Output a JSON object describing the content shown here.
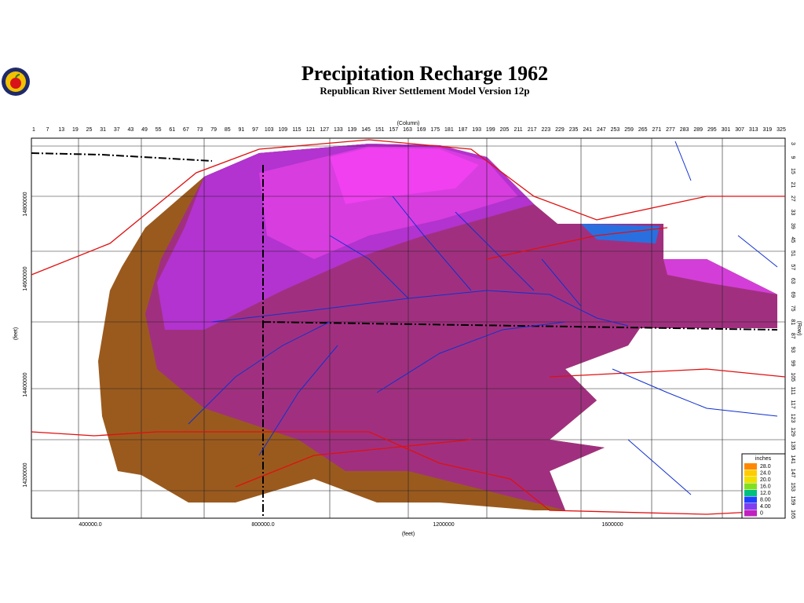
{
  "header": {
    "title": "Precipitation Recharge 1962",
    "subtitle": "Republican River Settlement Model Version 12p"
  },
  "axes": {
    "top_label": "(Column)",
    "right_label": "(Row)",
    "left_label": "(feet)",
    "bottom_label": "(feet)",
    "columns": [
      1,
      7,
      13,
      19,
      25,
      31,
      37,
      43,
      49,
      55,
      61,
      67,
      73,
      79,
      85,
      91,
      97,
      103,
      109,
      115,
      121,
      127,
      133,
      139,
      145,
      151,
      157,
      163,
      169,
      175,
      181,
      187,
      193,
      199,
      205,
      211,
      217,
      223,
      229,
      235,
      241,
      247,
      253,
      259,
      265,
      271,
      277,
      283,
      289,
      295,
      301,
      307,
      313,
      319,
      325
    ],
    "rows": [
      3,
      9,
      15,
      21,
      27,
      33,
      39,
      45,
      51,
      57,
      63,
      69,
      75,
      81,
      87,
      93,
      99,
      105,
      111,
      117,
      123,
      129,
      135,
      141,
      147,
      153,
      159,
      165
    ],
    "left_ticks": [
      "14800000",
      "14600000",
      "14400000",
      "14200000"
    ],
    "bottom_ticks": [
      "400000.0",
      "800000.0",
      "1200000",
      "1600000"
    ]
  },
  "legend": {
    "title": "inches",
    "labels": [
      "28.0",
      "24.0",
      "20.0",
      "16.0",
      "12.0",
      "8.00",
      "4.00",
      "0"
    ]
  }
}
